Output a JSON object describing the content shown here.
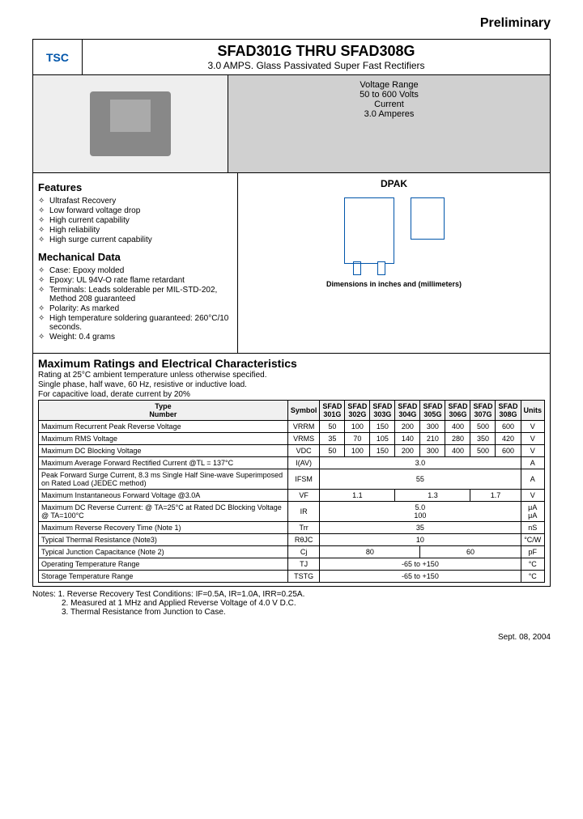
{
  "header": {
    "preliminary": "Preliminary",
    "logo_text": "TSC",
    "title_part1": "SFAD301G",
    "title_mid": " THRU ",
    "title_part2": "SFAD308G",
    "subtitle": "3.0 AMPS. Glass Passivated Super Fast Rectifiers"
  },
  "voltage_box": {
    "line1": "Voltage Range",
    "line2": "50 to 600 Volts",
    "line3": "Current",
    "line4": "3.0 Amperes"
  },
  "features": {
    "heading": "Features",
    "items": [
      "Ultrafast Recovery",
      "Low forward voltage drop",
      "High current capability",
      "High reliability",
      "High surge current capability"
    ]
  },
  "mechanical": {
    "heading": "Mechanical Data",
    "items": [
      "Case: Epoxy molded",
      "Epoxy: UL 94V-O rate flame retardant",
      "Terminals: Leads solderable per MIL-STD-202, Method 208 guaranteed",
      "Polarity: As marked",
      "High temperature soldering guaranteed: 260°C/10 seconds.",
      "Weight: 0.4 grams"
    ]
  },
  "package": {
    "label": "DPAK",
    "dim_note": "Dimensions in inches and (millimeters)"
  },
  "ratings": {
    "heading": "Maximum Ratings and Electrical Characteristics",
    "sub1": "Rating at 25°C ambient temperature unless otherwise specified.",
    "sub2": "Single phase, half wave, 60 Hz, resistive or inductive load.",
    "sub3": "For capacitive load, derate current by 20%"
  },
  "table": {
    "headers": [
      "Type Number",
      "Symbol",
      "SFAD 301G",
      "SFAD 302G",
      "SFAD 303G",
      "SFAD 304G",
      "SFAD 305G",
      "SFAD 306G",
      "SFAD 307G",
      "SFAD 308G",
      "Units"
    ],
    "rows": [
      {
        "label": "Maximum Recurrent Peak Reverse Voltage",
        "symbol": "VRRM",
        "vals": [
          "50",
          "100",
          "150",
          "200",
          "300",
          "400",
          "500",
          "600"
        ],
        "unit": "V"
      },
      {
        "label": "Maximum RMS Voltage",
        "symbol": "VRMS",
        "vals": [
          "35",
          "70",
          "105",
          "140",
          "210",
          "280",
          "350",
          "420"
        ],
        "unit": "V"
      },
      {
        "label": "Maximum DC Blocking Voltage",
        "symbol": "VDC",
        "vals": [
          "50",
          "100",
          "150",
          "200",
          "300",
          "400",
          "500",
          "600"
        ],
        "unit": "V"
      },
      {
        "label": "Maximum Average Forward Rectified Current @TL = 137°C",
        "symbol": "I(AV)",
        "span": "3.0",
        "unit": "A"
      },
      {
        "label": "Peak Forward Surge Current, 8.3 ms Single Half Sine-wave Superimposed on Rated Load (JEDEC method)",
        "symbol": "IFSM",
        "span": "55",
        "unit": "A"
      },
      {
        "label": "Maximum Instantaneous Forward Voltage @3.0A",
        "symbol": "VF",
        "groups": [
          {
            "span": 3,
            "v": "1.1"
          },
          {
            "span": 3,
            "v": "1.3"
          },
          {
            "span": 2,
            "v": "1.7"
          }
        ],
        "unit": "V"
      },
      {
        "label": "Maximum DC Reverse Current: @ TA=25°C at Rated DC Blocking Voltage @ TA=100°C",
        "symbol": "IR",
        "span": "5.0\n100",
        "unit": "μA\nμA"
      },
      {
        "label": "Maximum Reverse Recovery Time (Note 1)",
        "symbol": "Trr",
        "span": "35",
        "unit": "nS"
      },
      {
        "label": "Typical Thermal Resistance (Note3)",
        "symbol": "RθJC",
        "span": "10",
        "unit": "°C/W"
      },
      {
        "label": "Typical Junction Capacitance (Note 2)",
        "symbol": "Cj",
        "groups": [
          {
            "span": 4,
            "v": "80"
          },
          {
            "span": 4,
            "v": "60"
          }
        ],
        "unit": "pF"
      },
      {
        "label": "Operating Temperature Range",
        "symbol": "TJ",
        "span": "-65 to +150",
        "unit": "°C"
      },
      {
        "label": "Storage Temperature Range",
        "symbol": "TSTG",
        "span": "-65 to +150",
        "unit": "°C"
      }
    ]
  },
  "notes": {
    "n1": "Notes: 1. Reverse Recovery Test Conditions: IF=0.5A, IR=1.0A, IRR=0.25A.",
    "n2": "2. Measured at 1 MHz and Applied Reverse Voltage of 4.0 V D.C.",
    "n3": "3. Thermal Resistance from Junction to Case."
  },
  "footer": {
    "date": "Sept. 08, 2004"
  },
  "colors": {
    "accent": "#0055aa",
    "grey_bg": "#d0d0d0"
  }
}
